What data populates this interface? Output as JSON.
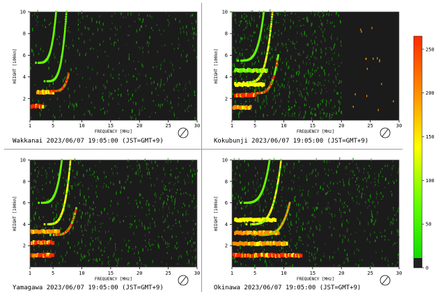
{
  "colorbar": {
    "ticks": [
      "250",
      "200",
      "150",
      "100",
      "50",
      "0"
    ],
    "colors": {
      "high": "#ff2a00",
      "mid_high": "#ff8c00",
      "mid": "#ffff00",
      "mid_low": "#66ff00",
      "low": "#11dd00",
      "floor": "#222222"
    }
  },
  "chart_data": [
    {
      "type": "heatmap",
      "station": "Wakkanai",
      "caption": "Wakkanai 2023/06/07 19:05:00 (JST=GMT+9)",
      "xlabel": "FREQUENCY [MHz]",
      "ylabel": "HEIGHT [100km]",
      "xlim": [
        1,
        30
      ],
      "ylim": [
        0,
        10
      ],
      "xticks": [
        "1",
        "5",
        "10",
        "15",
        "20",
        "25",
        "30"
      ],
      "yticks": [
        "2",
        "4",
        "6",
        "8",
        "10"
      ],
      "traces": [
        {
          "f": [
            1.2,
            3.2
          ],
          "h": 1.3,
          "kind": "flat",
          "intensity": 250
        },
        {
          "f": [
            2.2,
            5.0
          ],
          "h": 2.6,
          "kind": "flat",
          "intensity": 200
        },
        {
          "f": [
            4.5,
            7.7
          ],
          "h": [
            2.7,
            4.3
          ],
          "kind": "cusp",
          "intensity": 230
        },
        {
          "f": [
            3.5,
            7.3
          ],
          "h": [
            3.6,
            10.0
          ],
          "kind": "cusp",
          "intensity": 120
        },
        {
          "f": [
            2.0,
            5.5
          ],
          "h": [
            5.3,
            10.0
          ],
          "kind": "cusp",
          "intensity": 100
        }
      ]
    },
    {
      "type": "heatmap",
      "station": "Kokubunji",
      "caption": "Kokubunji 2023/06/07 19:05:00 (JST=GMT+9)",
      "xlabel": "FREQUENCY [MHz]",
      "ylabel": "HEIGHT [100km]",
      "xlim": [
        1,
        30
      ],
      "ylim": [
        0,
        10
      ],
      "xticks": [
        "1",
        "5",
        "10",
        "15",
        "20",
        "25",
        "30"
      ],
      "yticks": [
        "2",
        "4",
        "6",
        "8",
        "10"
      ],
      "traces": [
        {
          "f": [
            1.2,
            4.2
          ],
          "h": 1.2,
          "kind": "flat",
          "intensity": 200
        },
        {
          "f": [
            1.5,
            5.0
          ],
          "h": 2.3,
          "kind": "flat",
          "intensity": 230
        },
        {
          "f": [
            1.5,
            6.5
          ],
          "h": 3.3,
          "kind": "flat",
          "intensity": 140
        },
        {
          "f": [
            1.5,
            7.0
          ],
          "h": 4.6,
          "kind": "flat",
          "intensity": 120
        },
        {
          "f": [
            4.5,
            9.0
          ],
          "h": [
            2.5,
            6.0
          ],
          "kind": "cusp",
          "intensity": 240
        },
        {
          "f": [
            3.0,
            8.0
          ],
          "h": [
            3.5,
            10.0
          ],
          "kind": "cusp",
          "intensity": 150
        },
        {
          "f": [
            2.0,
            6.5
          ],
          "h": [
            5.5,
            10.0
          ],
          "kind": "cusp",
          "intensity": 120
        }
      ]
    },
    {
      "type": "heatmap",
      "station": "Yamagawa",
      "caption": "Yamagawa 2023/06/07 19:05:00 (JST=GMT+9)",
      "xlabel": "FREQUENCY [MHz]",
      "ylabel": "HEIGHT [100km]",
      "xlim": [
        1,
        30
      ],
      "ylim": [
        0,
        10
      ],
      "xticks": [
        "1",
        "5",
        "10",
        "15",
        "20",
        "25",
        "30"
      ],
      "yticks": [
        "2",
        "4",
        "6",
        "8",
        "10"
      ],
      "traces": [
        {
          "f": [
            1.2,
            5.0
          ],
          "h": 1.1,
          "kind": "flat",
          "intensity": 250
        },
        {
          "f": [
            1.2,
            5.0
          ],
          "h": 2.3,
          "kind": "flat",
          "intensity": 240
        },
        {
          "f": [
            1.2,
            6.0
          ],
          "h": 3.3,
          "kind": "flat",
          "intensity": 200
        },
        {
          "f": [
            4.5,
            9.0
          ],
          "h": [
            3.0,
            5.5
          ],
          "kind": "cusp",
          "intensity": 220
        },
        {
          "f": [
            3.5,
            8.0
          ],
          "h": [
            4.0,
            10.0
          ],
          "kind": "cusp",
          "intensity": 150
        },
        {
          "f": [
            2.5,
            6.5
          ],
          "h": [
            6.0,
            10.0
          ],
          "kind": "cusp",
          "intensity": 120
        }
      ]
    },
    {
      "type": "heatmap",
      "station": "Okinawa",
      "caption": "Okinawa 2023/06/07 19:05:00 (JST=GMT+9)",
      "xlabel": "FREQUENCY [MHz]",
      "ylabel": "HEIGHT [100km]",
      "xlim": [
        1,
        30
      ],
      "ylim": [
        0,
        10
      ],
      "xticks": [
        "1",
        "5",
        "10",
        "15",
        "20",
        "25",
        "30"
      ],
      "yticks": [
        "2",
        "4",
        "6",
        "8",
        "10"
      ],
      "traces": [
        {
          "f": [
            1.2,
            13.0
          ],
          "h": 1.1,
          "kind": "flat",
          "intensity": 220
        },
        {
          "f": [
            1.2,
            10.5
          ],
          "h": 2.2,
          "kind": "flat",
          "intensity": 200
        },
        {
          "f": [
            1.5,
            9.0
          ],
          "h": 3.2,
          "kind": "flat",
          "intensity": 180
        },
        {
          "f": [
            1.5,
            8.5
          ],
          "h": 4.4,
          "kind": "flat",
          "intensity": 140
        },
        {
          "f": [
            5.0,
            11.0
          ],
          "h": [
            3.0,
            6.0
          ],
          "kind": "cusp",
          "intensity": 200
        },
        {
          "f": [
            3.5,
            9.5
          ],
          "h": [
            4.0,
            10.0
          ],
          "kind": "cusp",
          "intensity": 150
        },
        {
          "f": [
            2.5,
            7.5
          ],
          "h": [
            6.0,
            10.0
          ],
          "kind": "cusp",
          "intensity": 120
        }
      ]
    }
  ]
}
